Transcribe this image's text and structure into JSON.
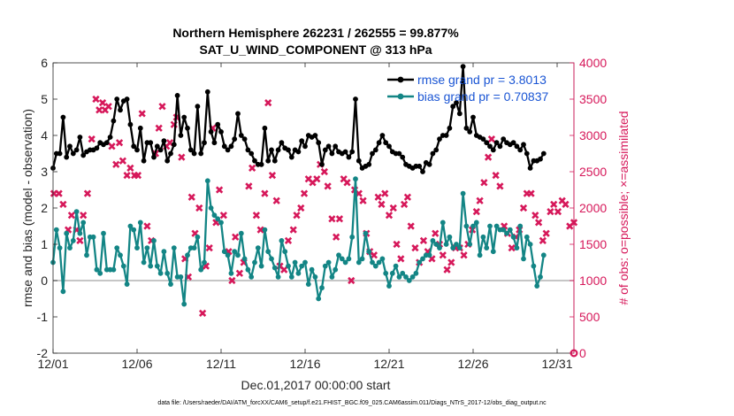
{
  "chart_data": {
    "type": "line",
    "title_line1": "Northern Hemisphere 262231 / 262555 = 99.877%",
    "title_line2": "SAT_U_WIND_COMPONENT @ 313 hPa",
    "xlabel": "Dec.01,2017 00:00:00 start",
    "ylabel_left": "rmse and bias (model - observation)",
    "ylabel_right": "# of obs: o=possible; ×=assimilated",
    "footer": "data file: /Users/raeder/DAI/ATM_forcXX/CAM6_setup/f.e21.FHIST_BGC.f09_025.CAM6assim.011/Diags_NTrS_2017-12/obs_diag_output.nc",
    "xlim": [
      0,
      31
    ],
    "ylim_left": [
      -2,
      6
    ],
    "ylim_right": [
      0,
      4000
    ],
    "x_ticks": [
      0,
      5,
      10,
      15,
      20,
      25,
      30
    ],
    "x_tick_labels": [
      "12/01",
      "12/06",
      "12/11",
      "12/16",
      "12/21",
      "12/26",
      "12/31"
    ],
    "y_ticks_left": [
      -2,
      -1,
      0,
      1,
      2,
      3,
      4,
      5,
      6
    ],
    "y_tick_labels_left": [
      "-2",
      "-1",
      "0",
      "1",
      "2",
      "3",
      "4",
      "5",
      "6"
    ],
    "y_ticks_right": [
      0,
      500,
      1000,
      1500,
      2000,
      2500,
      3000,
      3500,
      4000
    ],
    "y_tick_labels_right": [
      "0",
      "500",
      "1000",
      "1500",
      "2000",
      "2500",
      "3000",
      "3500",
      "4000"
    ],
    "zero_line": true,
    "colors": {
      "rmse": "#000000",
      "bias": "#138585",
      "obs": "#d6185a",
      "legend_text": "#1a55d4",
      "zero": "#b3b3b3"
    },
    "legend_position": "top-right",
    "series": [
      {
        "name": "rmse grand pr = 3.8013",
        "axis": "left",
        "color": "#000000",
        "y": [
          3.1,
          3.5,
          3.5,
          4.5,
          3.4,
          3.7,
          3.5,
          3.6,
          3.95,
          3.45,
          3.55,
          3.6,
          3.6,
          3.65,
          3.8,
          3.75,
          3.8,
          3.95,
          4.4,
          5.0,
          4.7,
          4.95,
          5.0,
          4.3,
          3.7,
          3.6,
          4.2,
          3.3,
          3.8,
          3.8,
          3.4,
          3.7,
          3.6,
          3.85,
          3.3,
          3.5,
          3.75,
          5.1,
          4.0,
          4.5,
          4.2,
          3.6,
          3.5,
          4.8,
          3.5,
          3.8,
          5.2,
          4.1,
          3.8,
          4.3,
          4.1,
          3.7,
          3.6,
          3.7,
          3.9,
          4.6,
          4.0,
          3.9,
          3.6,
          3.5,
          3.3,
          3.2,
          3.2,
          4.2,
          3.3,
          3.6,
          3.3,
          3.6,
          3.8,
          3.65,
          3.6,
          3.4,
          3.6,
          3.55,
          3.85,
          3.7,
          4.0,
          3.95,
          4.0,
          3.8,
          3.2,
          3.6,
          3.7,
          3.5,
          3.7,
          3.55,
          3.5,
          3.55,
          3.4,
          3.55,
          5.0,
          3.3,
          3.1,
          3.15,
          3.2,
          3.5,
          3.6,
          3.8,
          4.0,
          3.8,
          3.7,
          3.55,
          3.5,
          3.5,
          3.4,
          3.2,
          3.15,
          3.1,
          3.15,
          3.15,
          3.0,
          3.25,
          3.2,
          3.5,
          3.6,
          3.9,
          4.0,
          4.0,
          4.2,
          4.8,
          4.9,
          4.6,
          5.9,
          4.2,
          4.1,
          4.5,
          4.0,
          3.95,
          3.9,
          3.8,
          3.7,
          3.6,
          3.8,
          3.7,
          3.9,
          3.8,
          3.75,
          3.8,
          3.7,
          3.6,
          3.75,
          3.5,
          3.1,
          3.3,
          3.3,
          3.35,
          3.5
        ],
        "x_start": 0.0,
        "x_step": 0.2
      },
      {
        "name": "bias grand pr = 0.70837",
        "axis": "left",
        "color": "#138585",
        "y": [
          0.5,
          1.4,
          0.9,
          -0.3,
          1.3,
          0.9,
          1.1,
          1.9,
          1.3,
          1.6,
          0.7,
          1.2,
          1.2,
          0.3,
          0.2,
          1.3,
          0.3,
          0.3,
          0.3,
          0.9,
          0.7,
          0.4,
          -0.1,
          1.5,
          1.4,
          0.9,
          1.6,
          0.5,
          0.9,
          0.4,
          1.1,
          0.4,
          0.2,
          0.8,
          0.2,
          -0.1,
          0.9,
          0.1,
          0.1,
          -0.65,
          0.7,
          0.9,
          0.9,
          1.2,
          0.3,
          0.5,
          2.75,
          2.0,
          1.8,
          1.7,
          1.6,
          0.8,
          0.7,
          0.2,
          0.8,
          0.7,
          1.3,
          0.6,
          0.3,
          0.1,
          0.5,
          0.9,
          0.4,
          1.4,
          0.8,
          0.6,
          0.35,
          0.1,
          1.1,
          0.8,
          0.4,
          0.1,
          0.5,
          0.2,
          0.4,
          0.5,
          -0.1,
          0.3,
          0.1,
          -0.5,
          -0.2,
          0.4,
          0.5,
          0.1,
          0.3,
          0.7,
          0.6,
          0.5,
          0.6,
          1.2,
          2.8,
          0.5,
          0.6,
          1.3,
          0.8,
          0.5,
          0.4,
          0.5,
          0.6,
          0.2,
          -0.15,
          0.2,
          0.4,
          0.1,
          0.2,
          0.1,
          0.0,
          0.1,
          0.2,
          0.5,
          0.6,
          0.7,
          0.7,
          1.1,
          1.0,
          0.9,
          1.6,
          1.0,
          1.2,
          0.9,
          1.0,
          0.9,
          2.4,
          1.5,
          1.0,
          1.5,
          1.6,
          0.7,
          1.2,
          0.9,
          1.5,
          0.8,
          1.5,
          1.4,
          1.4,
          1.3,
          1.4,
          1.2,
          0.9,
          1.5,
          0.6,
          1.2,
          1.0,
          0.4,
          -0.15,
          0.1,
          0.7
        ],
        "x_start": 0.0,
        "x_step": 0.2
      }
    ],
    "obs_assimilated": {
      "name": "# of obs assimilated",
      "axis": "right",
      "marker": "x",
      "points": [
        [
          0.05,
          2200
        ],
        [
          0.35,
          2200
        ],
        [
          0.6,
          2050
        ],
        [
          0.9,
          1700
        ],
        [
          1.1,
          1900
        ],
        [
          1.4,
          1700
        ],
        [
          1.6,
          1550
        ],
        [
          1.8,
          1900
        ],
        [
          2.05,
          2200
        ],
        [
          2.3,
          2950
        ],
        [
          2.55,
          3500
        ],
        [
          2.75,
          3350
        ],
        [
          2.95,
          3450
        ],
        [
          3.1,
          3350
        ],
        [
          3.3,
          3400
        ],
        [
          3.5,
          2850
        ],
        [
          3.75,
          2600
        ],
        [
          3.95,
          2900
        ],
        [
          4.15,
          2650
        ],
        [
          4.4,
          2450
        ],
        [
          4.6,
          2550
        ],
        [
          4.85,
          2450
        ],
        [
          5.05,
          2450
        ],
        [
          5.3,
          3300
        ],
        [
          5.6,
          1750
        ],
        [
          5.85,
          1550
        ],
        [
          6.1,
          2750
        ],
        [
          6.3,
          3100
        ],
        [
          6.5,
          3400
        ],
        [
          6.75,
          2850
        ],
        [
          6.95,
          2900
        ],
        [
          7.2,
          3150
        ],
        [
          7.35,
          3250
        ],
        [
          7.65,
          2700
        ],
        [
          7.85,
          1300
        ],
        [
          8.05,
          1050
        ],
        [
          8.25,
          2150
        ],
        [
          8.45,
          1650
        ],
        [
          8.7,
          2000
        ],
        [
          8.9,
          550
        ],
        [
          9.1,
          1200
        ],
        [
          9.3,
          1450
        ],
        [
          9.5,
          3100
        ],
        [
          9.7,
          1800
        ],
        [
          9.9,
          2250
        ],
        [
          10.15,
          1900
        ],
        [
          10.45,
          1400
        ],
        [
          10.65,
          1000
        ],
        [
          10.85,
          1600
        ],
        [
          11.1,
          1100
        ],
        [
          11.35,
          1250
        ],
        [
          11.65,
          2300
        ],
        [
          11.85,
          2550
        ],
        [
          12.1,
          1900
        ],
        [
          12.35,
          1700
        ],
        [
          12.6,
          2200
        ],
        [
          12.8,
          3450
        ],
        [
          13.05,
          2450
        ],
        [
          13.3,
          2100
        ],
        [
          13.5,
          1200
        ],
        [
          13.75,
          1150
        ],
        [
          14.0,
          1550
        ],
        [
          14.3,
          1700
        ],
        [
          14.5,
          1900
        ],
        [
          14.75,
          2000
        ],
        [
          14.95,
          2200
        ],
        [
          15.2,
          2400
        ],
        [
          15.45,
          2350
        ],
        [
          15.7,
          2400
        ],
        [
          15.9,
          2600
        ],
        [
          16.15,
          2500
        ],
        [
          16.35,
          2300
        ],
        [
          16.6,
          1850
        ],
        [
          16.85,
          1600
        ],
        [
          17.05,
          1850
        ],
        [
          17.3,
          2400
        ],
        [
          17.5,
          2350
        ],
        [
          17.75,
          1000
        ],
        [
          17.95,
          2250
        ],
        [
          18.2,
          2200
        ],
        [
          18.45,
          2100
        ],
        [
          18.65,
          1650
        ],
        [
          18.85,
          1400
        ],
        [
          19.1,
          1350
        ],
        [
          19.35,
          2150
        ],
        [
          19.55,
          2050
        ],
        [
          19.75,
          2200
        ],
        [
          20.0,
          1900
        ],
        [
          20.25,
          2000
        ],
        [
          20.45,
          1500
        ],
        [
          20.7,
          1300
        ],
        [
          20.9,
          2050
        ],
        [
          21.1,
          2150
        ],
        [
          21.3,
          1750
        ],
        [
          21.55,
          1450
        ],
        [
          21.8,
          1250
        ],
        [
          22.05,
          1550
        ],
        [
          22.3,
          1400
        ],
        [
          22.55,
          1300
        ],
        [
          22.75,
          1650
        ],
        [
          23.0,
          1500
        ],
        [
          23.2,
          1350
        ],
        [
          23.45,
          1150
        ],
        [
          23.7,
          1250
        ],
        [
          23.95,
          1450
        ],
        [
          24.2,
          1450
        ],
        [
          24.45,
          1350
        ],
        [
          24.7,
          1500
        ],
        [
          24.95,
          1700
        ],
        [
          25.2,
          1950
        ],
        [
          25.4,
          2100
        ],
        [
          25.65,
          2350
        ],
        [
          25.9,
          2700
        ],
        [
          26.1,
          2950
        ],
        [
          26.35,
          2450
        ],
        [
          26.6,
          2300
        ],
        [
          26.85,
          1750
        ],
        [
          27.05,
          1650
        ],
        [
          27.3,
          1450
        ],
        [
          27.55,
          1600
        ],
        [
          27.75,
          1700
        ],
        [
          28.0,
          2000
        ],
        [
          28.2,
          2200
        ],
        [
          28.45,
          2200
        ],
        [
          28.7,
          1900
        ],
        [
          28.9,
          1800
        ],
        [
          29.15,
          1550
        ],
        [
          29.35,
          1650
        ],
        [
          29.6,
          1950
        ],
        [
          29.8,
          2050
        ],
        [
          30.05,
          1950
        ],
        [
          30.3,
          2100
        ],
        [
          30.5,
          2050
        ],
        [
          30.75,
          1750
        ],
        [
          31.0,
          1800
        ]
      ]
    },
    "obs_possible_marker": {
      "x": 31.0,
      "y": 0,
      "marker": "o"
    }
  }
}
